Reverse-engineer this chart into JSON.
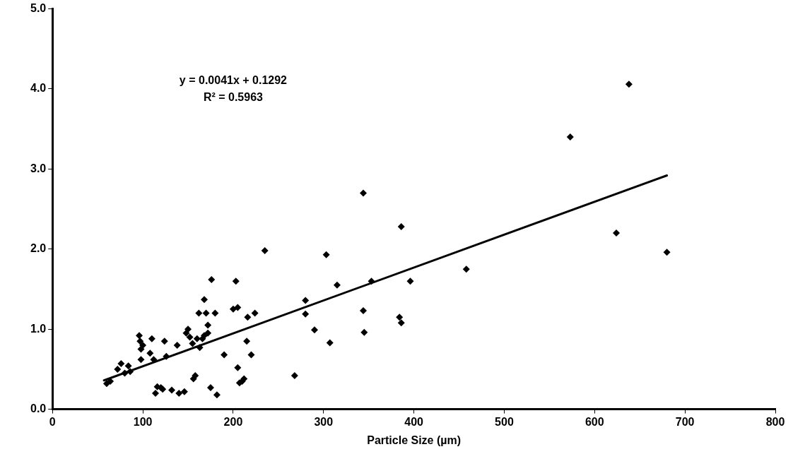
{
  "chart_data": {
    "type": "scatter",
    "xlabel": "Particle Size (µm)",
    "xlim": [
      0,
      800
    ],
    "xticks": [
      0,
      100,
      200,
      300,
      400,
      500,
      600,
      700,
      800
    ],
    "ylim": [
      0,
      5
    ],
    "yticks": [
      {
        "value": 0,
        "label": "0.0"
      },
      {
        "value": 1,
        "label": "1.0"
      },
      {
        "value": 2,
        "label": "2.0"
      },
      {
        "value": 3,
        "label": "3.0"
      },
      {
        "value": 4,
        "label": "4.0"
      },
      {
        "value": 5,
        "label": "5.0"
      }
    ],
    "grid": false,
    "legend": false,
    "marker": "diamond",
    "annotations": [
      "y = 0.0041x + 0.1292",
      "R² = 0.5963"
    ],
    "series": [
      {
        "color": "#000000",
        "x": [
          60,
          64,
          72,
          76,
          80,
          84,
          86,
          96,
          97,
          98,
          98,
          100,
          110,
          108,
          112,
          114,
          116,
          120,
          122,
          124,
          126,
          132,
          140,
          138,
          146,
          148,
          150,
          152,
          155,
          156,
          158,
          160,
          162,
          163,
          166,
          168,
          168,
          170,
          172,
          172,
          175,
          176,
          180,
          182,
          190,
          200,
          203,
          205,
          205,
          207,
          210,
          212,
          215,
          216,
          220,
          224,
          235,
          268,
          280,
          280,
          290,
          303,
          307,
          315,
          344,
          344,
          345,
          353,
          384,
          386,
          386,
          396,
          458,
          573,
          624,
          638,
          680
        ],
        "values": [
          0.32,
          0.35,
          0.5,
          0.57,
          0.45,
          0.54,
          0.47,
          0.92,
          0.85,
          0.62,
          0.75,
          0.8,
          0.88,
          0.7,
          0.62,
          0.2,
          0.28,
          0.27,
          0.25,
          0.85,
          0.66,
          0.24,
          0.2,
          0.8,
          0.22,
          0.95,
          1.0,
          0.9,
          0.82,
          0.38,
          0.42,
          0.88,
          1.2,
          0.77,
          0.88,
          0.92,
          1.37,
          1.2,
          0.95,
          1.05,
          0.27,
          1.62,
          1.2,
          0.18,
          0.68,
          1.25,
          1.6,
          1.27,
          0.52,
          0.33,
          0.35,
          0.38,
          0.85,
          1.15,
          0.68,
          1.2,
          1.98,
          0.42,
          1.36,
          1.19,
          0.99,
          1.93,
          0.83,
          1.55,
          2.7,
          1.23,
          0.96,
          1.6,
          1.15,
          1.08,
          2.28,
          1.6,
          1.75,
          3.4,
          2.2,
          4.06,
          1.96
        ]
      },
      {
        "type": "line",
        "color": "#000000",
        "marker": "none",
        "line_style": "solid",
        "x": [
          57,
          680
        ],
        "values": [
          0.36,
          2.92
        ]
      }
    ]
  }
}
